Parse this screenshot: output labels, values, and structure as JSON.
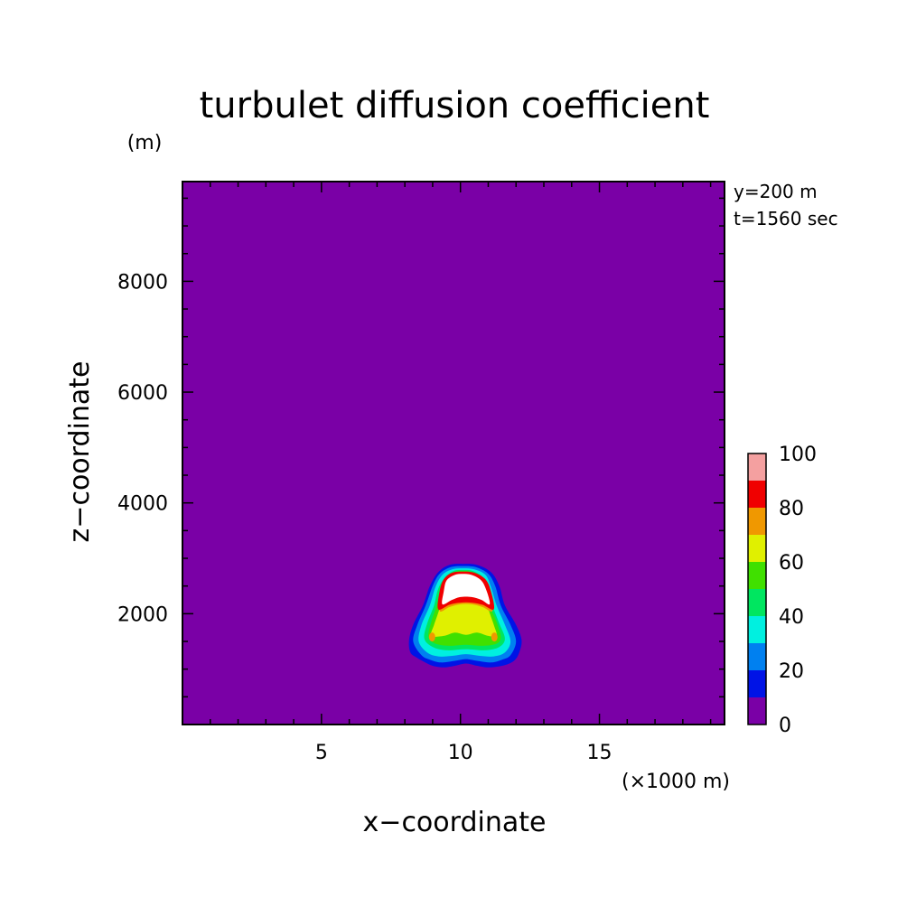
{
  "chart_data": {
    "type": "heatmap",
    "title": "turbulet diffusion coefficient",
    "xlabel": "x−coordinate",
    "ylabel": "z−coordinate",
    "x_unit": "(×1000 m)",
    "y_unit": "(m)",
    "annotations": [
      "y=200 m",
      "t=1560 sec"
    ],
    "xlim": [
      0,
      19.5
    ],
    "ylim": [
      0,
      9800
    ],
    "x_ticks": [
      5,
      10,
      15
    ],
    "y_ticks": [
      2000,
      4000,
      6000,
      8000
    ],
    "grid": false,
    "colorbar": {
      "levels": [
        0,
        10,
        20,
        30,
        40,
        50,
        60,
        70,
        80,
        90,
        100
      ],
      "labels": [
        0,
        20,
        40,
        60,
        80,
        100
      ],
      "colors": [
        "#7a00a6",
        "#0013e6",
        "#0080f0",
        "#00f0e0",
        "#00e660",
        "#40e000",
        "#e0f000",
        "#f09800",
        "#f00000",
        "#f4a0a0"
      ]
    },
    "background_value_range": [
      0,
      10
    ],
    "contours": [
      {
        "level": 10,
        "color": "#0013e6",
        "points": [
          [
            8.45,
            1200
          ],
          [
            8.7,
            1130
          ],
          [
            9.0,
            1060
          ],
          [
            9.4,
            1030
          ],
          [
            9.8,
            1060
          ],
          [
            10.2,
            1100
          ],
          [
            10.6,
            1060
          ],
          [
            11.0,
            1030
          ],
          [
            11.5,
            1060
          ],
          [
            11.9,
            1140
          ],
          [
            12.1,
            1280
          ],
          [
            12.2,
            1520
          ],
          [
            12.0,
            1800
          ],
          [
            11.6,
            2150
          ],
          [
            11.4,
            2500
          ],
          [
            11.1,
            2750
          ],
          [
            10.6,
            2880
          ],
          [
            10.1,
            2900
          ],
          [
            9.6,
            2880
          ],
          [
            9.2,
            2750
          ],
          [
            8.9,
            2500
          ],
          [
            8.65,
            2150
          ],
          [
            8.3,
            1800
          ],
          [
            8.15,
            1520
          ],
          [
            8.2,
            1300
          ]
        ]
      },
      {
        "level": 20,
        "color": "#0080f0",
        "points": [
          [
            8.6,
            1250
          ],
          [
            8.9,
            1170
          ],
          [
            9.3,
            1120
          ],
          [
            9.8,
            1150
          ],
          [
            10.2,
            1180
          ],
          [
            10.6,
            1150
          ],
          [
            11.1,
            1120
          ],
          [
            11.5,
            1170
          ],
          [
            11.8,
            1250
          ],
          [
            12.0,
            1500
          ],
          [
            11.8,
            1800
          ],
          [
            11.45,
            2150
          ],
          [
            11.25,
            2500
          ],
          [
            11.0,
            2720
          ],
          [
            10.55,
            2840
          ],
          [
            10.1,
            2860
          ],
          [
            9.65,
            2840
          ],
          [
            9.25,
            2720
          ],
          [
            9.0,
            2500
          ],
          [
            8.75,
            2150
          ],
          [
            8.45,
            1800
          ],
          [
            8.3,
            1500
          ]
        ]
      },
      {
        "level": 30,
        "color": "#00f0e0",
        "points": [
          [
            8.8,
            1300
          ],
          [
            9.2,
            1230
          ],
          [
            9.7,
            1240
          ],
          [
            10.2,
            1270
          ],
          [
            10.7,
            1240
          ],
          [
            11.2,
            1230
          ],
          [
            11.6,
            1300
          ],
          [
            11.8,
            1500
          ],
          [
            11.6,
            1800
          ],
          [
            11.3,
            2150
          ],
          [
            11.1,
            2480
          ],
          [
            10.9,
            2700
          ],
          [
            10.5,
            2800
          ],
          [
            10.1,
            2820
          ],
          [
            9.7,
            2800
          ],
          [
            9.35,
            2700
          ],
          [
            9.1,
            2480
          ],
          [
            8.9,
            2150
          ],
          [
            8.6,
            1800
          ],
          [
            8.5,
            1500
          ]
        ]
      },
      {
        "level": 40,
        "color": "#00e660",
        "points": [
          [
            9.0,
            1400
          ],
          [
            9.5,
            1340
          ],
          [
            10.2,
            1360
          ],
          [
            10.9,
            1340
          ],
          [
            11.4,
            1400
          ],
          [
            11.6,
            1550
          ],
          [
            11.4,
            1820
          ],
          [
            11.15,
            2150
          ],
          [
            11.0,
            2450
          ],
          [
            10.8,
            2660
          ],
          [
            10.45,
            2770
          ],
          [
            10.1,
            2790
          ],
          [
            9.75,
            2770
          ],
          [
            9.45,
            2660
          ],
          [
            9.2,
            2450
          ],
          [
            9.05,
            2150
          ],
          [
            8.8,
            1820
          ],
          [
            8.7,
            1550
          ]
        ]
      },
      {
        "level": 50,
        "color": "#40e000",
        "points": [
          [
            9.1,
            1460
          ],
          [
            9.6,
            1420
          ],
          [
            10.2,
            1440
          ],
          [
            10.8,
            1420
          ],
          [
            11.3,
            1460
          ],
          [
            11.45,
            1580
          ],
          [
            11.3,
            1850
          ],
          [
            11.05,
            2150
          ],
          [
            10.95,
            2420
          ],
          [
            10.75,
            2640
          ],
          [
            10.4,
            2750
          ],
          [
            10.1,
            2770
          ],
          [
            9.8,
            2750
          ],
          [
            9.5,
            2640
          ],
          [
            9.3,
            2420
          ],
          [
            9.15,
            2150
          ],
          [
            8.95,
            1850
          ],
          [
            8.85,
            1580
          ]
        ]
      },
      {
        "level": 60,
        "color": "#e0f000",
        "points": [
          [
            9.4,
            1600
          ],
          [
            9.8,
            1660
          ],
          [
            10.2,
            1620
          ],
          [
            10.6,
            1660
          ],
          [
            11.0,
            1600
          ],
          [
            11.3,
            1600
          ],
          [
            11.2,
            1800
          ],
          [
            11.0,
            2100
          ],
          [
            10.9,
            2400
          ],
          [
            10.7,
            2620
          ],
          [
            10.4,
            2730
          ],
          [
            10.1,
            2750
          ],
          [
            9.8,
            2730
          ],
          [
            9.55,
            2620
          ],
          [
            9.35,
            2400
          ],
          [
            9.25,
            2100
          ],
          [
            9.05,
            1800
          ],
          [
            8.95,
            1600
          ]
        ]
      },
      {
        "level": 70,
        "color": "#f09800",
        "points": [
          [
            9.25,
            2050
          ],
          [
            9.6,
            2120
          ],
          [
            10.0,
            2170
          ],
          [
            10.4,
            2170
          ],
          [
            10.8,
            2120
          ],
          [
            11.15,
            2050
          ],
          [
            11.05,
            2400
          ],
          [
            10.85,
            2620
          ],
          [
            10.45,
            2730
          ],
          [
            10.1,
            2750
          ],
          [
            9.75,
            2730
          ],
          [
            9.45,
            2620
          ],
          [
            9.3,
            2400
          ]
        ]
      },
      {
        "level": 80,
        "color": "#f00000",
        "points": [
          [
            9.2,
            2080
          ],
          [
            9.6,
            2160
          ],
          [
            10.0,
            2200
          ],
          [
            10.4,
            2200
          ],
          [
            10.8,
            2160
          ],
          [
            11.2,
            2080
          ],
          [
            11.1,
            2400
          ],
          [
            10.9,
            2620
          ],
          [
            10.5,
            2740
          ],
          [
            10.1,
            2760
          ],
          [
            9.7,
            2740
          ],
          [
            9.4,
            2620
          ],
          [
            9.25,
            2400
          ]
        ]
      },
      {
        "level": 100,
        "color": "#ffffff",
        "points": [
          [
            9.35,
            2170
          ],
          [
            9.7,
            2250
          ],
          [
            10.0,
            2300
          ],
          [
            10.4,
            2300
          ],
          [
            10.75,
            2250
          ],
          [
            11.05,
            2170
          ],
          [
            10.95,
            2400
          ],
          [
            10.75,
            2600
          ],
          [
            10.4,
            2700
          ],
          [
            10.1,
            2720
          ],
          [
            9.8,
            2700
          ],
          [
            9.5,
            2600
          ],
          [
            9.4,
            2400
          ]
        ]
      }
    ],
    "spots": [
      {
        "x": 8.98,
        "z": 1580,
        "color": "#f09800"
      },
      {
        "x": 11.22,
        "z": 1580,
        "color": "#f09800"
      }
    ]
  }
}
